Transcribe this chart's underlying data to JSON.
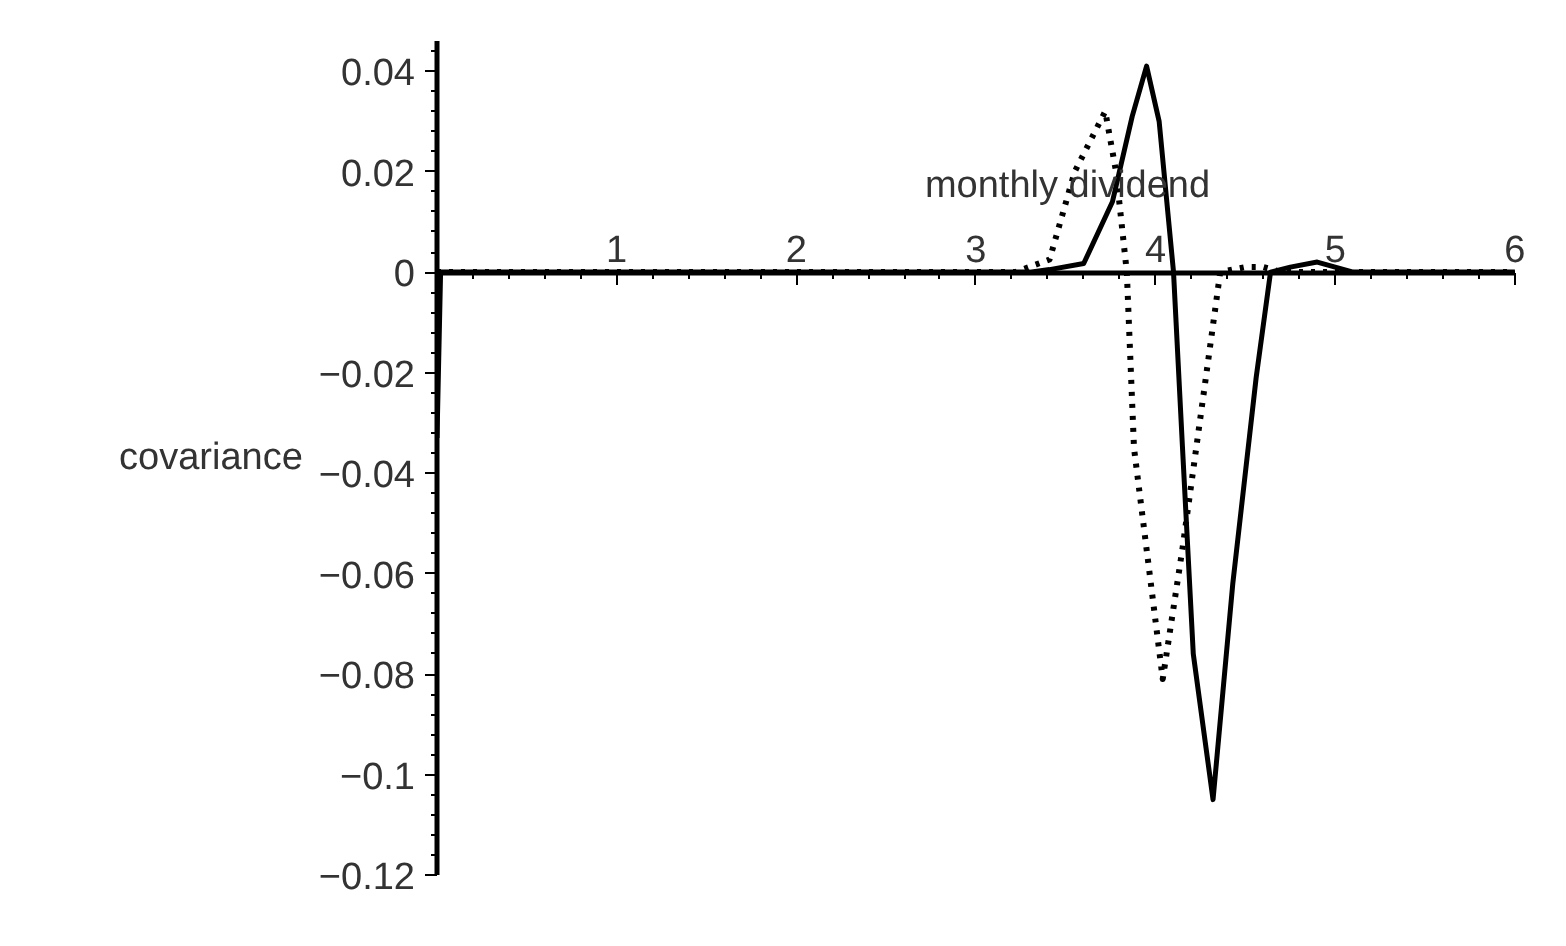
{
  "chart_data": {
    "type": "line",
    "xlabel": "monthly dividend",
    "ylabel": "covariance",
    "xlim": [
      0,
      6
    ],
    "ylim": [
      -0.12,
      0.046
    ],
    "xticks": [
      1,
      2,
      3,
      4,
      5,
      6
    ],
    "yticks": [
      -0.12,
      -0.1,
      -0.08,
      -0.06,
      -0.04,
      -0.02,
      0,
      0.02,
      0.04
    ],
    "series": [
      {
        "color": "#000000",
        "line_style": "solid",
        "x": [
          0,
          0.02,
          3.3,
          3.41,
          3.6,
          3.76,
          3.87,
          3.95,
          4.02,
          4.1,
          4.15,
          4.21,
          4.32,
          4.43,
          4.56,
          4.64,
          4.75,
          4.9,
          5.0,
          5.1,
          6
        ],
        "values": [
          -0.033,
          0,
          0,
          0.0005,
          0.0017,
          0.014,
          0.031,
          0.041,
          0.03,
          0,
          -0.035,
          -0.076,
          -0.105,
          -0.062,
          -0.021,
          0,
          0.001,
          0.002,
          0.001,
          0,
          0
        ]
      },
      {
        "color": "#000000",
        "line_style": "dotted",
        "x": [
          0,
          3.22,
          3.41,
          3.55,
          3.72,
          3.78,
          3.84,
          3.88,
          4.04,
          4.15,
          4.28,
          4.36,
          4.5,
          4.6,
          4.7,
          6
        ],
        "values": [
          0,
          0,
          0.0025,
          0.02,
          0.032,
          0.02,
          0,
          -0.035,
          -0.081,
          -0.055,
          -0.021,
          0,
          0.001,
          0.001,
          0,
          0
        ]
      }
    ]
  }
}
